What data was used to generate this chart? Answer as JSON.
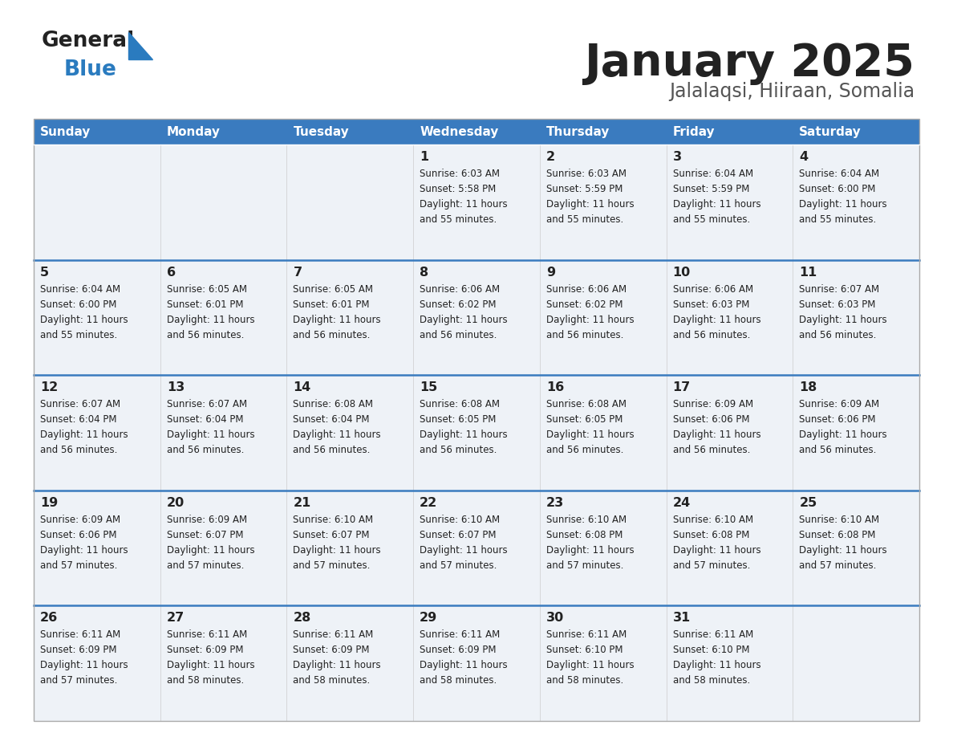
{
  "title": "January 2025",
  "subtitle": "Jalalaqsi, Hiiraan, Somalia",
  "days_of_week": [
    "Sunday",
    "Monday",
    "Tuesday",
    "Wednesday",
    "Thursday",
    "Friday",
    "Saturday"
  ],
  "header_bg": "#3a7bbf",
  "header_text": "#ffffff",
  "cell_bg_light": "#eef2f7",
  "row_separator_color": "#3a7bbf",
  "cell_border_color": "#cccccc",
  "text_color": "#222222",
  "title_color": "#222222",
  "subtitle_color": "#555555",
  "logo_color_general": "#222222",
  "logo_color_blue": "#2a7bbf",
  "logo_triangle_color": "#2a7bbf",
  "calendar_data": [
    [
      {
        "day": null,
        "sunrise": null,
        "sunset": null,
        "daylight_hours": null,
        "daylight_minutes": null
      },
      {
        "day": null,
        "sunrise": null,
        "sunset": null,
        "daylight_hours": null,
        "daylight_minutes": null
      },
      {
        "day": null,
        "sunrise": null,
        "sunset": null,
        "daylight_hours": null,
        "daylight_minutes": null
      },
      {
        "day": 1,
        "sunrise": "6:03 AM",
        "sunset": "5:58 PM",
        "daylight_hours": 11,
        "daylight_minutes": 55
      },
      {
        "day": 2,
        "sunrise": "6:03 AM",
        "sunset": "5:59 PM",
        "daylight_hours": 11,
        "daylight_minutes": 55
      },
      {
        "day": 3,
        "sunrise": "6:04 AM",
        "sunset": "5:59 PM",
        "daylight_hours": 11,
        "daylight_minutes": 55
      },
      {
        "day": 4,
        "sunrise": "6:04 AM",
        "sunset": "6:00 PM",
        "daylight_hours": 11,
        "daylight_minutes": 55
      }
    ],
    [
      {
        "day": 5,
        "sunrise": "6:04 AM",
        "sunset": "6:00 PM",
        "daylight_hours": 11,
        "daylight_minutes": 55
      },
      {
        "day": 6,
        "sunrise": "6:05 AM",
        "sunset": "6:01 PM",
        "daylight_hours": 11,
        "daylight_minutes": 56
      },
      {
        "day": 7,
        "sunrise": "6:05 AM",
        "sunset": "6:01 PM",
        "daylight_hours": 11,
        "daylight_minutes": 56
      },
      {
        "day": 8,
        "sunrise": "6:06 AM",
        "sunset": "6:02 PM",
        "daylight_hours": 11,
        "daylight_minutes": 56
      },
      {
        "day": 9,
        "sunrise": "6:06 AM",
        "sunset": "6:02 PM",
        "daylight_hours": 11,
        "daylight_minutes": 56
      },
      {
        "day": 10,
        "sunrise": "6:06 AM",
        "sunset": "6:03 PM",
        "daylight_hours": 11,
        "daylight_minutes": 56
      },
      {
        "day": 11,
        "sunrise": "6:07 AM",
        "sunset": "6:03 PM",
        "daylight_hours": 11,
        "daylight_minutes": 56
      }
    ],
    [
      {
        "day": 12,
        "sunrise": "6:07 AM",
        "sunset": "6:04 PM",
        "daylight_hours": 11,
        "daylight_minutes": 56
      },
      {
        "day": 13,
        "sunrise": "6:07 AM",
        "sunset": "6:04 PM",
        "daylight_hours": 11,
        "daylight_minutes": 56
      },
      {
        "day": 14,
        "sunrise": "6:08 AM",
        "sunset": "6:04 PM",
        "daylight_hours": 11,
        "daylight_minutes": 56
      },
      {
        "day": 15,
        "sunrise": "6:08 AM",
        "sunset": "6:05 PM",
        "daylight_hours": 11,
        "daylight_minutes": 56
      },
      {
        "day": 16,
        "sunrise": "6:08 AM",
        "sunset": "6:05 PM",
        "daylight_hours": 11,
        "daylight_minutes": 56
      },
      {
        "day": 17,
        "sunrise": "6:09 AM",
        "sunset": "6:06 PM",
        "daylight_hours": 11,
        "daylight_minutes": 56
      },
      {
        "day": 18,
        "sunrise": "6:09 AM",
        "sunset": "6:06 PM",
        "daylight_hours": 11,
        "daylight_minutes": 56
      }
    ],
    [
      {
        "day": 19,
        "sunrise": "6:09 AM",
        "sunset": "6:06 PM",
        "daylight_hours": 11,
        "daylight_minutes": 57
      },
      {
        "day": 20,
        "sunrise": "6:09 AM",
        "sunset": "6:07 PM",
        "daylight_hours": 11,
        "daylight_minutes": 57
      },
      {
        "day": 21,
        "sunrise": "6:10 AM",
        "sunset": "6:07 PM",
        "daylight_hours": 11,
        "daylight_minutes": 57
      },
      {
        "day": 22,
        "sunrise": "6:10 AM",
        "sunset": "6:07 PM",
        "daylight_hours": 11,
        "daylight_minutes": 57
      },
      {
        "day": 23,
        "sunrise": "6:10 AM",
        "sunset": "6:08 PM",
        "daylight_hours": 11,
        "daylight_minutes": 57
      },
      {
        "day": 24,
        "sunrise": "6:10 AM",
        "sunset": "6:08 PM",
        "daylight_hours": 11,
        "daylight_minutes": 57
      },
      {
        "day": 25,
        "sunrise": "6:10 AM",
        "sunset": "6:08 PM",
        "daylight_hours": 11,
        "daylight_minutes": 57
      }
    ],
    [
      {
        "day": 26,
        "sunrise": "6:11 AM",
        "sunset": "6:09 PM",
        "daylight_hours": 11,
        "daylight_minutes": 57
      },
      {
        "day": 27,
        "sunrise": "6:11 AM",
        "sunset": "6:09 PM",
        "daylight_hours": 11,
        "daylight_minutes": 58
      },
      {
        "day": 28,
        "sunrise": "6:11 AM",
        "sunset": "6:09 PM",
        "daylight_hours": 11,
        "daylight_minutes": 58
      },
      {
        "day": 29,
        "sunrise": "6:11 AM",
        "sunset": "6:09 PM",
        "daylight_hours": 11,
        "daylight_minutes": 58
      },
      {
        "day": 30,
        "sunrise": "6:11 AM",
        "sunset": "6:10 PM",
        "daylight_hours": 11,
        "daylight_minutes": 58
      },
      {
        "day": 31,
        "sunrise": "6:11 AM",
        "sunset": "6:10 PM",
        "daylight_hours": 11,
        "daylight_minutes": 58
      },
      {
        "day": null,
        "sunrise": null,
        "sunset": null,
        "daylight_hours": null,
        "daylight_minutes": null
      }
    ]
  ]
}
